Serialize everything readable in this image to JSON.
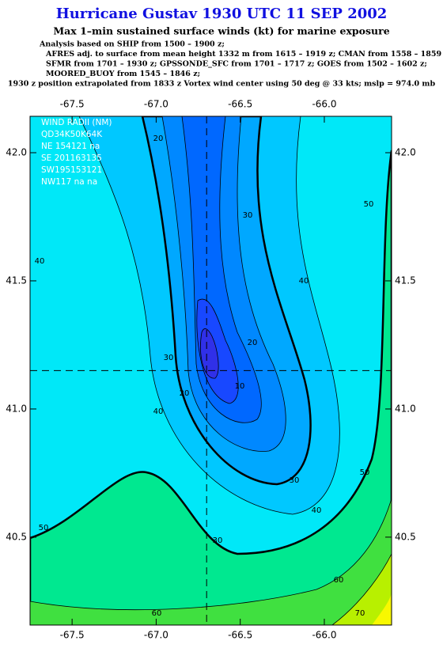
{
  "chart_data": {
    "type": "contour",
    "title": "Hurricane Gustav 1930 UTC 11 SEP 2002",
    "subtitle": "Max 1–min sustained surface winds (kt) for marine exposure",
    "notes": [
      "Analysis based on  SHIP from 1500 – 1900 z;",
      "AFRES adj. to surface from mean height 1332 m from 1615 – 1919 z;  CMAN from 1558 – 1859 z;",
      "SFMR from 1701 – 1930 z;  GPSSONDE_SFC from 1701 – 1717 z;  GOES from 1502 – 1602 z;",
      "MOORED_BUOY from 1545 – 1846 z;",
      "1930 z position extrapolated from 1833 z Vortex wind center using 50 deg @ 33 kts; mslp = 974.0 mb"
    ],
    "wind_radii": [
      "WIND RADII (NM)",
      "QD34K50K64K",
      "NE 154121  na",
      "SE 201163135",
      "SW195153121",
      "NW117  na  na"
    ],
    "xlim": [
      -67.75,
      -65.6
    ],
    "ylim": [
      40.157,
      42.142
    ],
    "xticks": [
      -67.5,
      {
        "value": -67,
        "label": "-67.0"
      },
      -66.5,
      {
        "value": -66,
        "label": "-66.0"
      }
    ],
    "yticks": [
      {
        "value": 42,
        "label": "42.0"
      },
      41.5,
      {
        "value": 41,
        "label": "41.0"
      },
      40.5
    ],
    "center": [
      -66.7,
      41.15
    ],
    "contour_labels": [
      20,
      30,
      40,
      50,
      40,
      30,
      20,
      20,
      10,
      40,
      30,
      40,
      50,
      50,
      30,
      60,
      70,
      60
    ]
  }
}
